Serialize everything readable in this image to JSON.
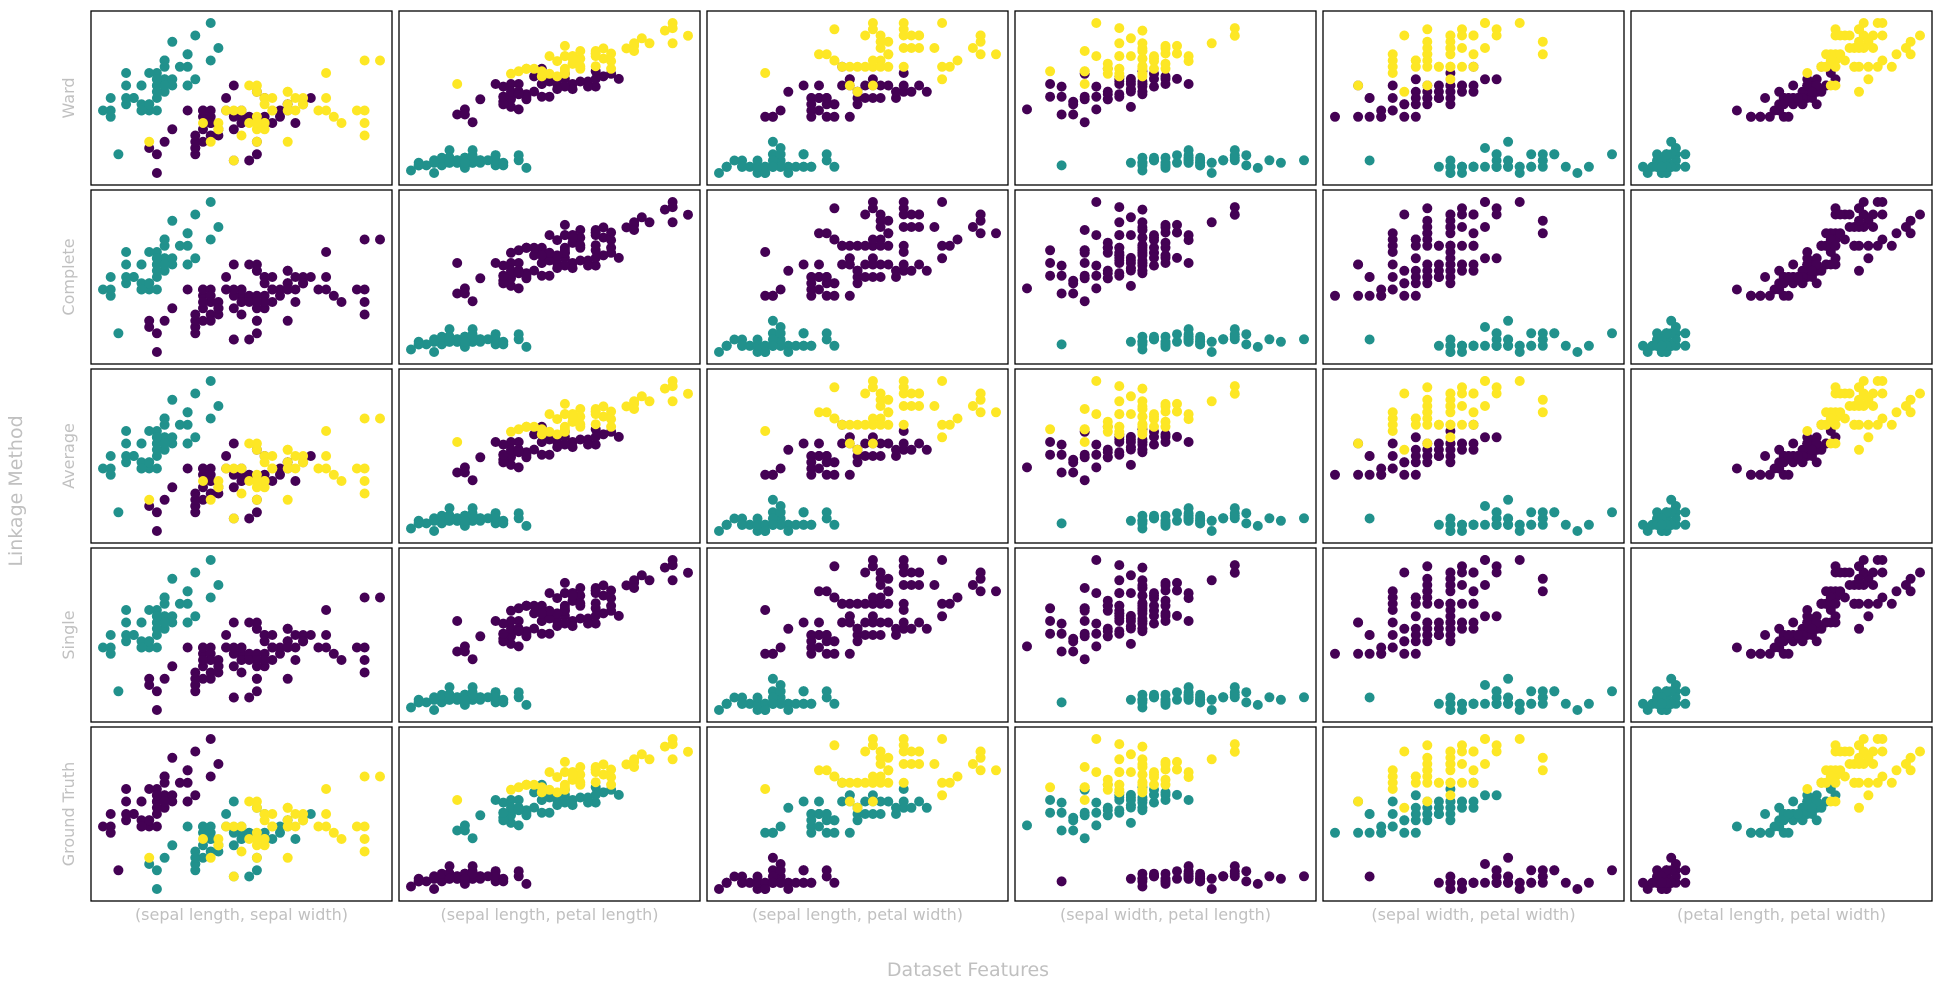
{
  "figure": {
    "y_title": "Linkage Method",
    "x_title": "Dataset Features",
    "row_labels": [
      "Ward",
      "Complete",
      "Average",
      "Single",
      "Ground Truth"
    ],
    "col_labels": [
      "(sepal length, sepal width)",
      "(sepal length, petal length)",
      "(sepal length, petal width)",
      "(sepal width, petal length)",
      "(sepal width, petal width)",
      "(petal length, petal width)"
    ],
    "label_color": "#c0c0c0"
  },
  "colors": {
    "purple": "#440154",
    "teal": "#21918c",
    "yellow": "#fde725"
  },
  "chart_data": {
    "type": "scatter",
    "title": "",
    "xlabel": "Dataset Features",
    "ylabel": "Linkage Method",
    "grid": false,
    "tick_labels": "hidden",
    "legend": "none",
    "feature_order": [
      "sepal length",
      "sepal width",
      "petal length",
      "petal width"
    ],
    "pairs": [
      [
        0,
        1
      ],
      [
        0,
        2
      ],
      [
        0,
        3
      ],
      [
        1,
        2
      ],
      [
        1,
        3
      ],
      [
        2,
        3
      ]
    ],
    "color_legend": [
      "purple",
      "teal",
      "yellow"
    ],
    "cluster_colors": {
      "Ward": [
        "teal",
        "purple",
        "yellow"
      ],
      "Complete": [
        "teal",
        "purple",
        "purple"
      ],
      "Average": [
        "teal",
        "purple",
        "yellow"
      ],
      "Single": [
        "teal",
        "purple",
        "purple"
      ],
      "Ground Truth": [
        "purple",
        "teal",
        "yellow"
      ]
    },
    "points": [
      [
        5.1,
        3.5,
        1.4,
        0.2,
        0
      ],
      [
        4.9,
        3.0,
        1.4,
        0.2,
        0
      ],
      [
        4.7,
        3.2,
        1.3,
        0.2,
        0
      ],
      [
        4.6,
        3.1,
        1.5,
        0.2,
        0
      ],
      [
        5.0,
        3.6,
        1.4,
        0.2,
        0
      ],
      [
        5.4,
        3.9,
        1.7,
        0.4,
        0
      ],
      [
        4.6,
        3.4,
        1.4,
        0.3,
        0
      ],
      [
        5.0,
        3.4,
        1.5,
        0.2,
        0
      ],
      [
        4.4,
        2.9,
        1.4,
        0.2,
        0
      ],
      [
        4.9,
        3.1,
        1.5,
        0.1,
        0
      ],
      [
        5.4,
        3.7,
        1.5,
        0.2,
        0
      ],
      [
        4.8,
        3.4,
        1.6,
        0.2,
        0
      ],
      [
        4.8,
        3.0,
        1.4,
        0.1,
        0
      ],
      [
        4.3,
        3.0,
        1.1,
        0.1,
        0
      ],
      [
        5.8,
        4.0,
        1.2,
        0.2,
        0
      ],
      [
        5.7,
        4.4,
        1.5,
        0.4,
        0
      ],
      [
        5.4,
        3.9,
        1.3,
        0.4,
        0
      ],
      [
        5.1,
        3.5,
        1.4,
        0.3,
        0
      ],
      [
        5.7,
        3.8,
        1.7,
        0.3,
        0
      ],
      [
        5.1,
        3.8,
        1.5,
        0.3,
        0
      ],
      [
        5.4,
        3.4,
        1.7,
        0.2,
        0
      ],
      [
        5.1,
        3.7,
        1.5,
        0.4,
        0
      ],
      [
        4.6,
        3.6,
        1.0,
        0.2,
        0
      ],
      [
        5.1,
        3.3,
        1.7,
        0.5,
        0
      ],
      [
        4.8,
        3.4,
        1.9,
        0.2,
        0
      ],
      [
        5.0,
        3.0,
        1.6,
        0.2,
        0
      ],
      [
        5.0,
        3.4,
        1.6,
        0.4,
        0
      ],
      [
        5.2,
        3.5,
        1.5,
        0.2,
        0
      ],
      [
        5.2,
        3.4,
        1.4,
        0.2,
        0
      ],
      [
        4.7,
        3.2,
        1.6,
        0.2,
        0
      ],
      [
        4.8,
        3.1,
        1.6,
        0.2,
        0
      ],
      [
        5.4,
        3.4,
        1.5,
        0.4,
        0
      ],
      [
        5.2,
        4.1,
        1.5,
        0.1,
        0
      ],
      [
        5.5,
        4.2,
        1.4,
        0.2,
        0
      ],
      [
        4.9,
        3.1,
        1.5,
        0.2,
        0
      ],
      [
        5.0,
        3.2,
        1.2,
        0.2,
        0
      ],
      [
        5.5,
        3.5,
        1.3,
        0.2,
        0
      ],
      [
        4.9,
        3.6,
        1.4,
        0.1,
        0
      ],
      [
        4.4,
        3.0,
        1.3,
        0.2,
        0
      ],
      [
        5.1,
        3.4,
        1.5,
        0.2,
        0
      ],
      [
        5.0,
        3.5,
        1.3,
        0.3,
        0
      ],
      [
        4.5,
        2.3,
        1.3,
        0.3,
        0
      ],
      [
        4.4,
        3.2,
        1.3,
        0.2,
        0
      ],
      [
        5.0,
        3.5,
        1.6,
        0.6,
        0
      ],
      [
        5.1,
        3.8,
        1.9,
        0.4,
        0
      ],
      [
        4.8,
        3.0,
        1.4,
        0.3,
        0
      ],
      [
        5.1,
        3.8,
        1.6,
        0.2,
        0
      ],
      [
        4.6,
        3.2,
        1.4,
        0.2,
        0
      ],
      [
        5.3,
        3.7,
        1.5,
        0.2,
        0
      ],
      [
        5.0,
        3.3,
        1.4,
        0.2,
        0
      ],
      [
        7.0,
        3.2,
        4.7,
        1.4,
        1
      ],
      [
        6.4,
        3.2,
        4.5,
        1.5,
        1
      ],
      [
        6.9,
        3.1,
        4.9,
        1.5,
        1
      ],
      [
        5.5,
        2.3,
        4.0,
        1.3,
        1
      ],
      [
        6.5,
        2.8,
        4.6,
        1.5,
        1
      ],
      [
        5.7,
        2.8,
        4.5,
        1.3,
        1
      ],
      [
        6.3,
        3.3,
        4.7,
        1.6,
        1
      ],
      [
        4.9,
        2.4,
        3.3,
        1.0,
        1
      ],
      [
        6.6,
        2.9,
        4.6,
        1.3,
        1
      ],
      [
        5.2,
        2.7,
        3.9,
        1.4,
        1
      ],
      [
        5.0,
        2.0,
        3.5,
        1.0,
        1
      ],
      [
        5.9,
        3.0,
        4.2,
        1.5,
        1
      ],
      [
        6.0,
        2.2,
        4.0,
        1.0,
        1
      ],
      [
        6.1,
        2.9,
        4.7,
        1.4,
        1
      ],
      [
        5.6,
        2.9,
        3.6,
        1.3,
        1
      ],
      [
        6.7,
        3.1,
        4.4,
        1.4,
        1
      ],
      [
        5.6,
        3.0,
        4.5,
        1.5,
        1
      ],
      [
        5.8,
        2.7,
        4.1,
        1.0,
        1
      ],
      [
        6.2,
        2.2,
        4.5,
        1.5,
        1
      ],
      [
        5.6,
        2.5,
        3.9,
        1.1,
        1
      ],
      [
        5.9,
        3.2,
        4.8,
        1.8,
        1
      ],
      [
        6.1,
        2.8,
        4.0,
        1.3,
        1
      ],
      [
        6.3,
        2.5,
        4.9,
        1.5,
        1
      ],
      [
        6.1,
        2.8,
        4.7,
        1.2,
        1
      ],
      [
        6.4,
        2.9,
        4.3,
        1.3,
        1
      ],
      [
        6.6,
        3.0,
        4.4,
        1.4,
        1
      ],
      [
        6.8,
        2.8,
        4.8,
        1.4,
        1
      ],
      [
        6.7,
        3.0,
        5.0,
        1.7,
        1
      ],
      [
        6.0,
        2.9,
        4.5,
        1.5,
        1
      ],
      [
        5.7,
        2.6,
        3.5,
        1.0,
        1
      ],
      [
        5.5,
        2.4,
        3.8,
        1.1,
        1
      ],
      [
        5.5,
        2.4,
        3.7,
        1.0,
        1
      ],
      [
        5.8,
        2.7,
        3.9,
        1.2,
        1
      ],
      [
        6.0,
        2.7,
        5.1,
        1.6,
        1
      ],
      [
        5.4,
        3.0,
        4.5,
        1.5,
        1
      ],
      [
        6.0,
        3.4,
        4.5,
        1.6,
        1
      ],
      [
        6.7,
        3.1,
        4.7,
        1.5,
        1
      ],
      [
        6.3,
        2.3,
        4.4,
        1.3,
        1
      ],
      [
        5.6,
        3.0,
        4.1,
        1.3,
        1
      ],
      [
        5.5,
        2.5,
        4.0,
        1.3,
        1
      ],
      [
        5.5,
        2.6,
        4.4,
        1.2,
        1
      ],
      [
        6.1,
        3.0,
        4.6,
        1.4,
        1
      ],
      [
        5.8,
        2.6,
        4.0,
        1.2,
        1
      ],
      [
        5.0,
        2.3,
        3.3,
        1.0,
        1
      ],
      [
        5.6,
        2.7,
        4.2,
        1.3,
        1
      ],
      [
        5.7,
        3.0,
        4.2,
        1.2,
        1
      ],
      [
        5.7,
        2.9,
        4.2,
        1.3,
        1
      ],
      [
        6.2,
        2.9,
        4.3,
        1.3,
        1
      ],
      [
        5.1,
        2.5,
        3.0,
        1.1,
        1
      ],
      [
        5.7,
        2.8,
        4.1,
        1.3,
        1
      ],
      [
        6.3,
        3.3,
        6.0,
        2.5,
        2
      ],
      [
        5.8,
        2.7,
        5.1,
        1.9,
        2
      ],
      [
        7.1,
        3.0,
        5.9,
        2.1,
        2
      ],
      [
        6.3,
        2.9,
        5.6,
        1.8,
        2
      ],
      [
        6.5,
        3.0,
        5.8,
        2.2,
        2
      ],
      [
        7.6,
        3.0,
        6.6,
        2.1,
        2
      ],
      [
        4.9,
        2.5,
        4.5,
        1.7,
        2
      ],
      [
        7.3,
        2.9,
        6.3,
        1.8,
        2
      ],
      [
        6.7,
        2.5,
        5.8,
        1.8,
        2
      ],
      [
        7.2,
        3.6,
        6.1,
        2.5,
        2
      ],
      [
        6.5,
        3.2,
        5.1,
        2.0,
        2
      ],
      [
        6.4,
        2.7,
        5.3,
        1.9,
        2
      ],
      [
        6.8,
        3.0,
        5.5,
        2.1,
        2
      ],
      [
        5.7,
        2.5,
        5.0,
        2.0,
        2
      ],
      [
        5.8,
        2.8,
        5.1,
        2.4,
        2
      ],
      [
        6.4,
        3.2,
        5.3,
        2.3,
        2
      ],
      [
        6.5,
        3.0,
        5.5,
        1.8,
        2
      ],
      [
        7.7,
        3.8,
        6.7,
        2.2,
        2
      ],
      [
        7.7,
        2.6,
        6.9,
        2.3,
        2
      ],
      [
        6.0,
        2.2,
        5.0,
        1.5,
        2
      ],
      [
        6.9,
        3.2,
        5.7,
        2.3,
        2
      ],
      [
        5.6,
        2.8,
        4.9,
        2.0,
        2
      ],
      [
        7.7,
        2.8,
        6.7,
        2.0,
        2
      ],
      [
        6.3,
        2.7,
        4.9,
        1.8,
        2
      ],
      [
        6.7,
        3.3,
        5.7,
        2.1,
        2
      ],
      [
        7.2,
        3.2,
        6.0,
        1.8,
        2
      ],
      [
        6.2,
        2.8,
        4.8,
        1.8,
        2
      ],
      [
        6.1,
        3.0,
        4.9,
        1.8,
        2
      ],
      [
        6.4,
        2.8,
        5.6,
        2.1,
        2
      ],
      [
        7.2,
        3.0,
        5.8,
        1.6,
        2
      ],
      [
        7.4,
        2.8,
        6.1,
        1.9,
        2
      ],
      [
        7.9,
        3.8,
        6.4,
        2.0,
        2
      ],
      [
        6.4,
        2.8,
        5.6,
        2.2,
        2
      ],
      [
        6.3,
        2.8,
        5.1,
        1.5,
        2
      ],
      [
        6.1,
        2.6,
        5.6,
        1.4,
        2
      ],
      [
        7.7,
        3.0,
        6.1,
        2.3,
        2
      ],
      [
        6.3,
        3.4,
        5.6,
        2.4,
        2
      ],
      [
        6.4,
        3.1,
        5.5,
        1.8,
        2
      ],
      [
        6.0,
        3.0,
        4.8,
        1.8,
        2
      ],
      [
        6.9,
        3.1,
        5.4,
        2.1,
        2
      ],
      [
        6.7,
        3.1,
        5.6,
        2.4,
        2
      ],
      [
        6.9,
        3.1,
        5.1,
        2.3,
        2
      ],
      [
        5.8,
        2.7,
        5.1,
        1.9,
        2
      ],
      [
        6.8,
        3.2,
        5.9,
        2.3,
        2
      ],
      [
        6.7,
        3.3,
        5.7,
        2.5,
        2
      ],
      [
        6.7,
        3.0,
        5.2,
        2.3,
        2
      ],
      [
        6.3,
        2.5,
        5.0,
        1.9,
        2
      ],
      [
        6.5,
        3.0,
        5.2,
        2.0,
        2
      ],
      [
        6.2,
        3.4,
        5.4,
        2.3,
        2
      ],
      [
        5.9,
        3.0,
        5.1,
        1.8,
        2
      ]
    ]
  }
}
